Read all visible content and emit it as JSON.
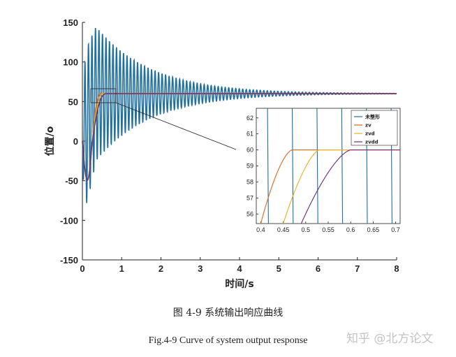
{
  "chart_data": {
    "type": "line",
    "xlabel": "时间/s",
    "ylabel": "位置/o",
    "xlim": [
      0,
      8
    ],
    "ylim": [
      -150,
      150
    ],
    "x_ticks": [
      "0",
      "1",
      "2",
      "3",
      "4",
      "5",
      "6",
      "7",
      "8"
    ],
    "y_ticks": [
      "150",
      "100",
      "50",
      "0",
      "-50",
      "-100",
      "-150"
    ],
    "grid": false,
    "series": [
      {
        "name": "未整形",
        "color": "#1f6f9f",
        "style": "damped oscillation",
        "peak": 115,
        "settle": 60,
        "frequency_hz": 11.2,
        "decay_per_s": 0.72,
        "settle_time_s": 5.2
      },
      {
        "name": "zv",
        "color": "#d9691f",
        "settle": 60,
        "reach_time_s": 0.47
      },
      {
        "name": "zvd",
        "color": "#e8b020",
        "settle": 60,
        "reach_time_s": 0.53
      },
      {
        "name": "zvdd",
        "color": "#6b2a7a",
        "settle": 60,
        "reach_time_s": 0.6
      }
    ],
    "inset": {
      "xlim": [
        0.39,
        0.71
      ],
      "ylim": [
        55.4,
        62.6
      ],
      "x_ticks": [
        "0.4",
        "0.45",
        "0.5",
        "0.55",
        "0.6",
        "0.65",
        "0.7"
      ],
      "y_ticks": [
        "62",
        "61",
        "60",
        "59",
        "58",
        "57",
        "56"
      ],
      "legend_position": "top-right"
    }
  },
  "caption_cn": "图 4-9 系统输出响应曲线",
  "caption_en": "Fig.4-9 Curve of system output response",
  "watermark": "知乎 @北方论文"
}
